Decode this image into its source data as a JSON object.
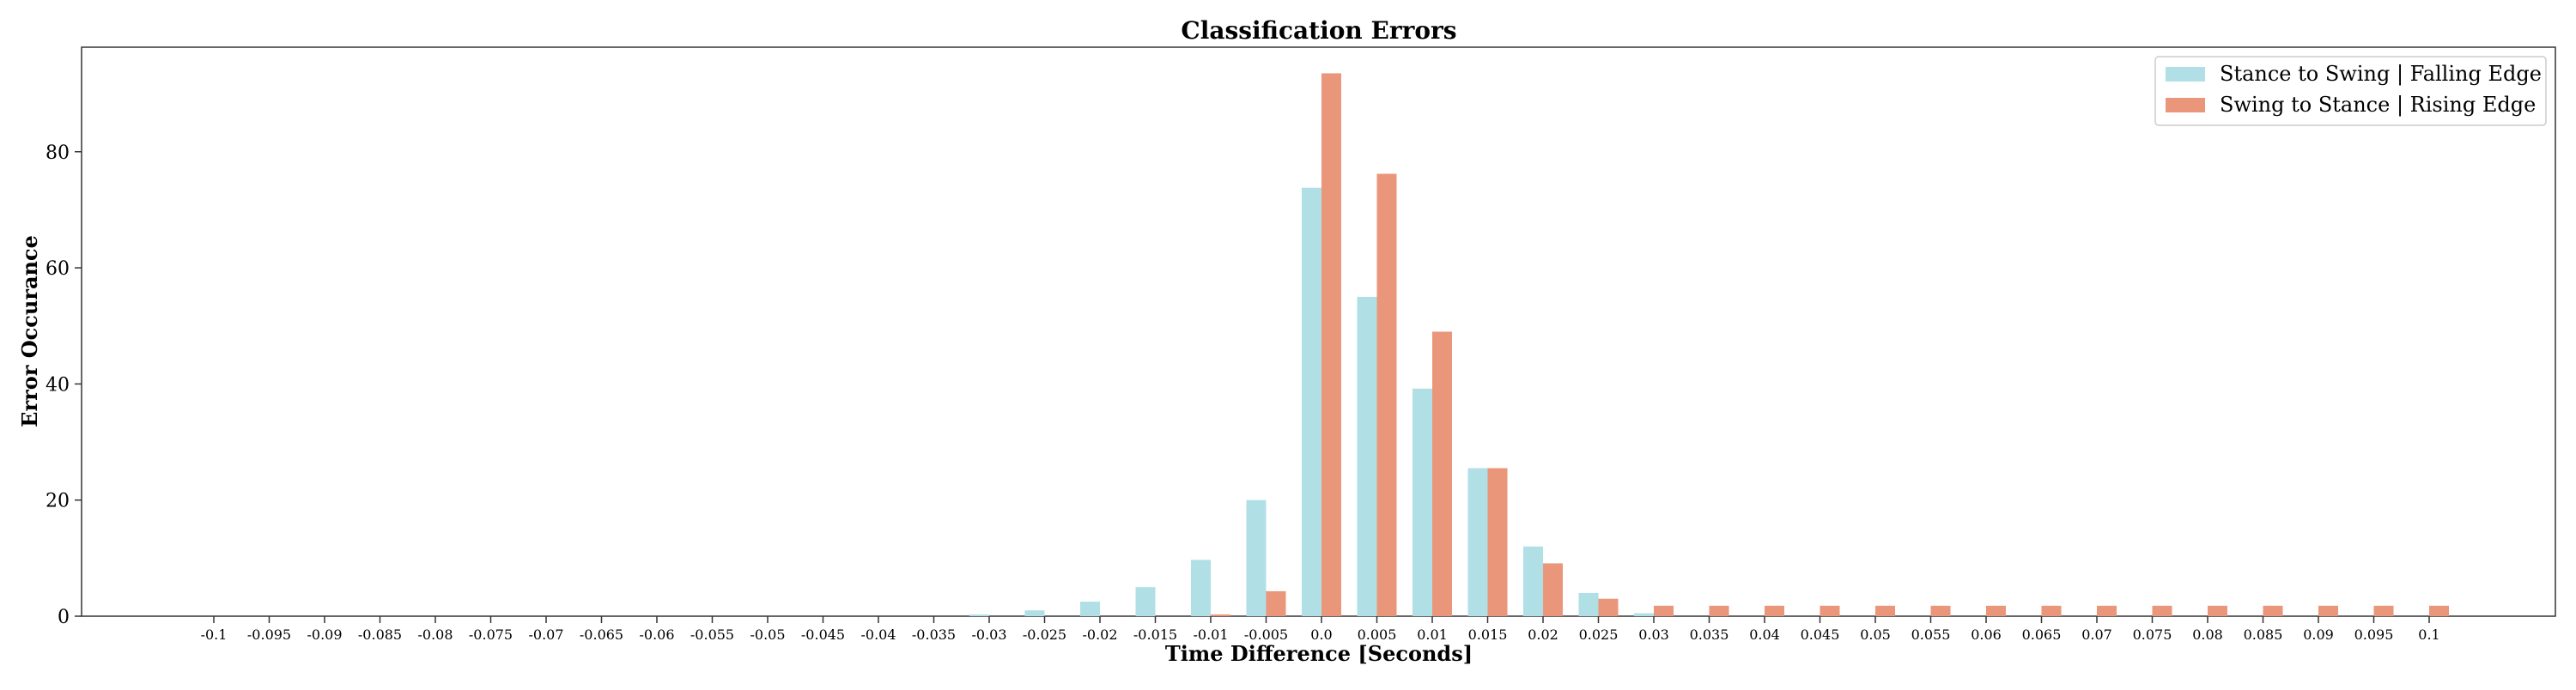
{
  "chart_data": {
    "type": "bar",
    "title": "Classification Errors",
    "xlabel": "Time Difference [Seconds]",
    "ylabel": "Error Occurance",
    "ylim": [
      0,
      98
    ],
    "yticks": [
      0,
      20,
      40,
      60,
      80
    ],
    "grid": false,
    "legend_position": "top-right",
    "categories": [
      "-0.1",
      "-0.095",
      "-0.09",
      "-0.085",
      "-0.08",
      "-0.075",
      "-0.07",
      "-0.065",
      "-0.06",
      "-0.055",
      "-0.05",
      "-0.045",
      "-0.04",
      "-0.035",
      "-0.03",
      "-0.025",
      "-0.02",
      "-0.015",
      "-0.01",
      "-0.005",
      "0.0",
      "0.005",
      "0.01",
      "0.015",
      "0.02",
      "0.025",
      "0.03",
      "0.035",
      "0.04",
      "0.045",
      "0.05",
      "0.055",
      "0.06",
      "0.065",
      "0.07",
      "0.075",
      "0.08",
      "0.085",
      "0.09",
      "0.095",
      "0.1"
    ],
    "series": [
      {
        "name": "Stance to Swing | Falling Edge",
        "color": "#b0dfe5",
        "values": [
          0,
          0,
          0,
          0,
          0,
          0,
          0,
          0,
          0,
          0,
          0,
          0,
          0,
          0,
          0.3,
          1.0,
          2.5,
          5.0,
          9.7,
          20.0,
          73.8,
          55.0,
          39.2,
          25.5,
          12.0,
          4.0,
          0.5,
          0,
          0,
          0,
          0,
          0,
          0,
          0,
          0,
          0,
          0,
          0,
          0,
          0,
          0
        ]
      },
      {
        "name": "Swing to Stance | Rising Edge",
        "color": "#e9967a",
        "values": [
          0,
          0,
          0,
          0,
          0,
          0,
          0,
          0,
          0,
          0,
          0,
          0,
          0,
          0,
          0,
          0,
          0,
          0,
          0.3,
          4.3,
          93.5,
          76.2,
          49.0,
          25.5,
          9.1,
          3.0,
          1.8,
          1.8,
          1.8,
          1.8,
          1.8,
          1.8,
          1.8,
          1.8,
          1.8,
          1.8,
          1.8,
          1.8,
          1.8,
          1.8,
          1.8
        ]
      }
    ]
  }
}
